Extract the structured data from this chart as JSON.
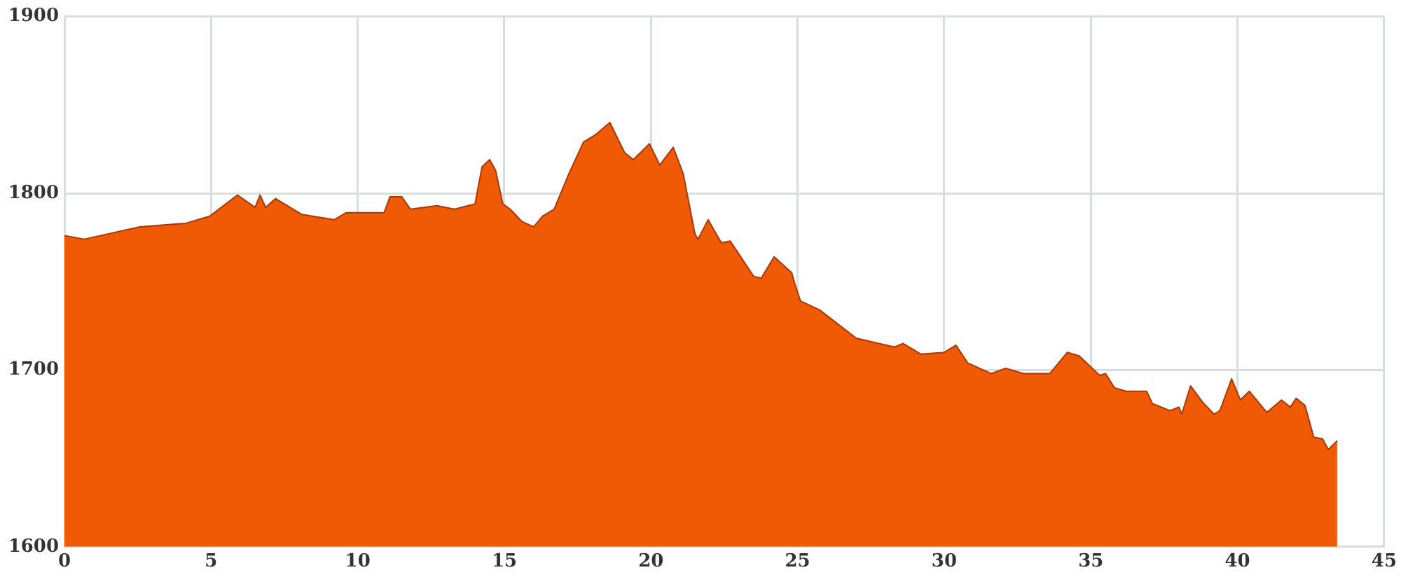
{
  "chart_data": {
    "type": "area",
    "xlim": [
      0,
      45
    ],
    "xticks": [
      0,
      5,
      10,
      15,
      20,
      25,
      30,
      35,
      40,
      45
    ],
    "ylim": [
      1600,
      1900
    ],
    "yticks": [
      1600,
      1700,
      1800,
      1900
    ],
    "grid": true,
    "legend": false,
    "series": [
      {
        "color": "#f05a05",
        "x": [
          0,
          0.67,
          2.57,
          4.14,
          4.95,
          5.9,
          6.5,
          6.67,
          6.86,
          7.2,
          8.1,
          9.2,
          9.6,
          10.9,
          11.1,
          11.5,
          11.8,
          12.7,
          13.3,
          14.0,
          14.24,
          14.5,
          14.7,
          14.95,
          15.2,
          15.6,
          16.0,
          16.3,
          16.7,
          17.2,
          17.7,
          18.1,
          18.6,
          19.1,
          19.4,
          19.95,
          20.3,
          20.76,
          21.1,
          21.5,
          21.6,
          21.95,
          22.4,
          22.7,
          23.5,
          23.76,
          24.2,
          24.8,
          24.9,
          25.1,
          25.75,
          27.0,
          28.3,
          28.6,
          29.2,
          30.0,
          30.4,
          30.8,
          31.6,
          32.1,
          32.7,
          33.6,
          34.2,
          34.6,
          35.3,
          35.5,
          35.8,
          36.2,
          36.9,
          37.1,
          37.7,
          38.0,
          38.1,
          38.4,
          38.8,
          39.2,
          39.4,
          39.8,
          40.1,
          40.4,
          41.0,
          41.5,
          41.8,
          42.0,
          42.3,
          42.6,
          42.9,
          43.1,
          43.4
        ],
        "values": [
          1776,
          1774,
          1781,
          1783,
          1787,
          1799,
          1792,
          1799,
          1792,
          1797,
          1788,
          1785,
          1789,
          1789,
          1798,
          1798,
          1791,
          1793,
          1791,
          1794,
          1815,
          1819,
          1813,
          1794,
          1791,
          1784,
          1781,
          1787,
          1791,
          1811,
          1829,
          1833,
          1840,
          1823,
          1819,
          1828,
          1816,
          1826,
          1811,
          1777,
          1774,
          1785,
          1772,
          1773,
          1753,
          1752,
          1764,
          1755,
          1749,
          1739,
          1734,
          1718,
          1713,
          1715,
          1709,
          1710,
          1714,
          1704,
          1698,
          1701,
          1698,
          1698,
          1710,
          1708,
          1697,
          1698,
          1690,
          1688,
          1688,
          1681,
          1677,
          1679,
          1675,
          1691,
          1682,
          1675,
          1677,
          1695,
          1683,
          1688,
          1676,
          1683,
          1679,
          1684,
          1680,
          1662,
          1661,
          1655,
          1660
        ]
      }
    ]
  }
}
